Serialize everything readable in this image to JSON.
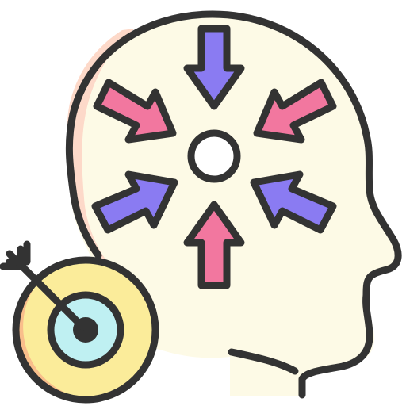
{
  "illustration": {
    "subject": "focus-mind-icon",
    "colors": {
      "outline": "#333333",
      "head_fill": "#FDFAE6",
      "head_shadow": "#FDD9C9",
      "arrow_purple": "#8A7BF2",
      "arrow_pink": "#F2779F",
      "target_outer": "#FBEC9A",
      "target_outer_shadow": "#F9BE8B",
      "target_inner": "#BFF0F2",
      "center_dot": "#FFFFFF",
      "bullseye": "#333333"
    },
    "icons": [
      "head-icon",
      "center-focus-dot-icon",
      "arrow-down-icon",
      "arrow-up-icon",
      "arrow-down-right-icon",
      "arrow-down-left-icon",
      "arrow-up-right-icon",
      "arrow-up-left-icon",
      "target-icon",
      "target-arrow-icon"
    ]
  }
}
